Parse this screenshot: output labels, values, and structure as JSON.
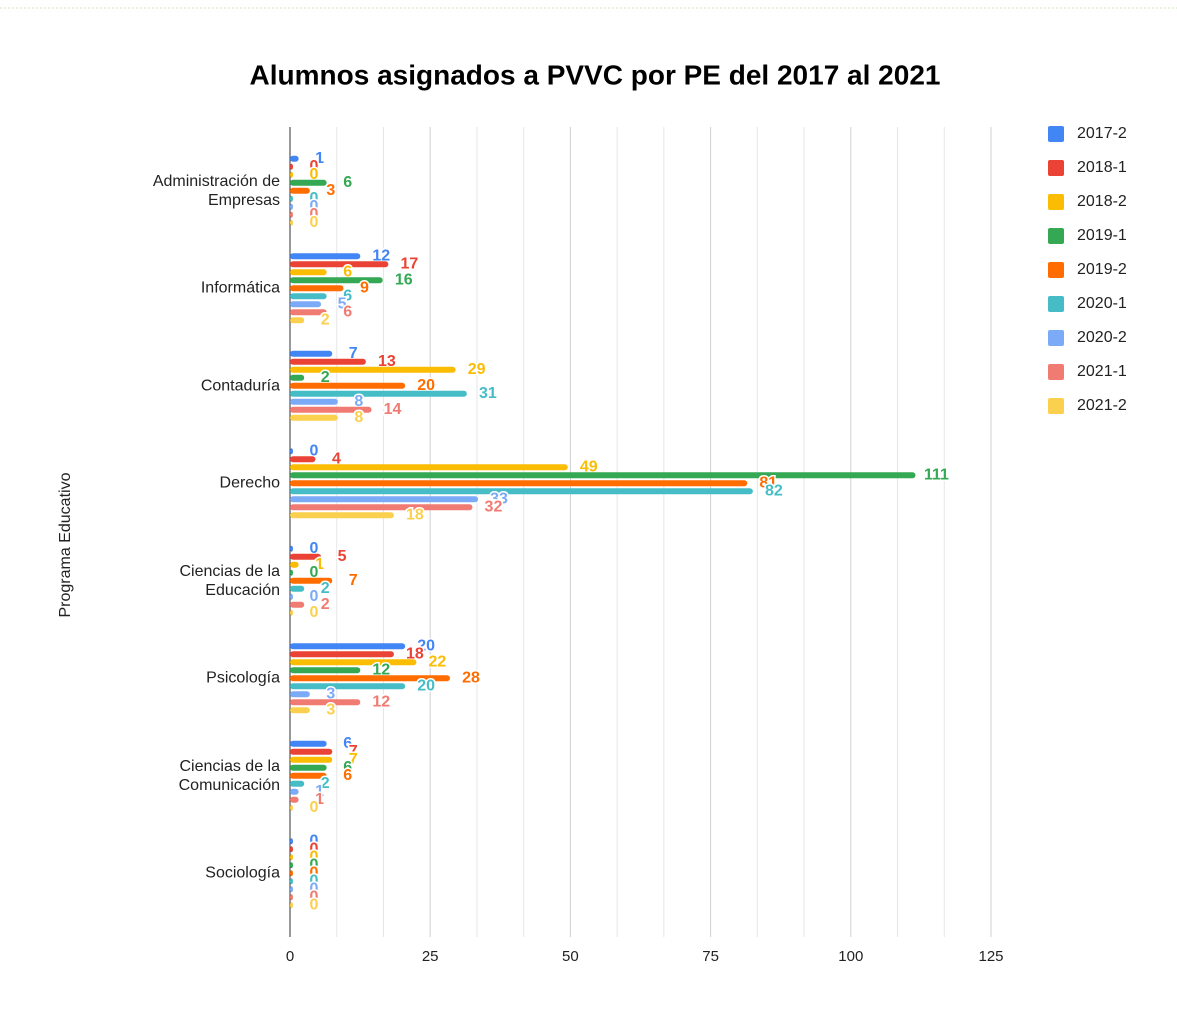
{
  "chart_data": {
    "type": "bar",
    "orientation": "horizontal",
    "title": "Alumnos asignados a PVVC por PE del 2017 al 2021",
    "y_label": "Programa Educativo",
    "categories": [
      "Administración de Empresas",
      "Informática",
      "Contaduría",
      "Derecho",
      "Ciencias de la Educación",
      "Psicología",
      "Ciencias de la Comunicación",
      "Sociología"
    ],
    "series": [
      {
        "name": "2017-2",
        "color": "#4285f4",
        "values": [
          1,
          12,
          7,
          0,
          0,
          20,
          6,
          0
        ]
      },
      {
        "name": "2018-1",
        "color": "#ea4335",
        "values": [
          0,
          17,
          13,
          4,
          5,
          18,
          7,
          0
        ]
      },
      {
        "name": "2018-2",
        "color": "#fbbc04",
        "values": [
          0,
          6,
          29,
          49,
          1,
          22,
          7,
          0
        ]
      },
      {
        "name": "2019-1",
        "color": "#34a853",
        "values": [
          6,
          16,
          2,
          111,
          0,
          12,
          6,
          0
        ]
      },
      {
        "name": "2019-2",
        "color": "#ff6d01",
        "values": [
          3,
          9,
          20,
          81,
          7,
          28,
          6,
          0
        ]
      },
      {
        "name": "2020-1",
        "color": "#46bdc6",
        "values": [
          0,
          6,
          31,
          82,
          2,
          20,
          2,
          0
        ]
      },
      {
        "name": "2020-2",
        "color": "#7baaf7",
        "values": [
          0,
          5,
          8,
          33,
          0,
          3,
          1,
          0
        ]
      },
      {
        "name": "2021-1",
        "color": "#f07b72",
        "values": [
          0,
          6,
          14,
          32,
          2,
          12,
          1,
          0
        ]
      },
      {
        "name": "2021-2",
        "color": "#fcd04f",
        "values": [
          0,
          2,
          8,
          18,
          0,
          3,
          0,
          0
        ]
      }
    ],
    "xlim": [
      0,
      125
    ],
    "xticks": [
      0,
      25,
      50,
      75,
      100,
      125
    ],
    "grid": true,
    "legend": "right"
  }
}
